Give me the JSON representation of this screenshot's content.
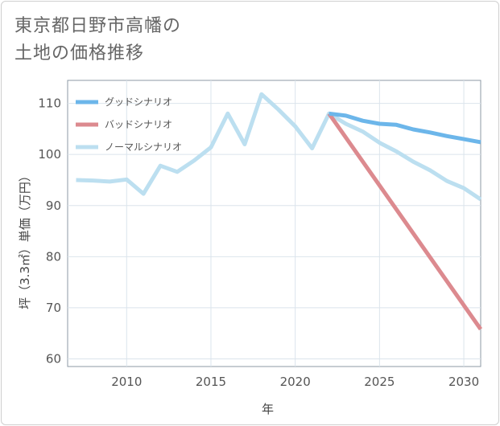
{
  "title": {
    "line1": "東京都日野市高幡の",
    "line2": "土地の価格推移"
  },
  "chart_data": {
    "type": "line",
    "title": "東京都日野市高幡の土地の価格推移",
    "xlabel": "年",
    "ylabel": "坪（3.3㎡）単価（万円）",
    "xlim": [
      2006.5,
      2031
    ],
    "ylim": [
      58.5,
      114.5
    ],
    "xticks": [
      2010,
      2015,
      2020,
      2025,
      2030
    ],
    "yticks": [
      60,
      70,
      80,
      90,
      100,
      110
    ],
    "legend_position": "top-left",
    "grid": true,
    "series": [
      {
        "name": "グッドシナリオ",
        "color": "#6cb6ea",
        "width": 5,
        "x": [
          2022,
          2023,
          2024,
          2025,
          2026,
          2027,
          2028,
          2029,
          2030,
          2031
        ],
        "y": [
          108,
          107.6,
          106.6,
          106.0,
          105.8,
          104.9,
          104.3,
          103.6,
          103.0,
          102.4
        ]
      },
      {
        "name": "バッドシナリオ",
        "color": "#dc8a8f",
        "width": 5,
        "x": [
          2022,
          2031
        ],
        "y": [
          108,
          65.8
        ]
      },
      {
        "name": "ノーマルシナリオ",
        "color": "#bcdff0",
        "width": 5,
        "x": [
          2007,
          2008,
          2009,
          2010,
          2011,
          2012,
          2013,
          2014,
          2015,
          2016,
          2017,
          2018,
          2019,
          2020,
          2021,
          2022,
          2023,
          2024,
          2025,
          2026,
          2027,
          2028,
          2029,
          2030,
          2031
        ],
        "y": [
          95.0,
          94.9,
          94.7,
          95.1,
          92.3,
          97.8,
          96.6,
          98.8,
          101.4,
          108.0,
          102.0,
          111.8,
          108.8,
          105.5,
          101.2,
          108.0,
          106.0,
          104.5,
          102.3,
          100.6,
          98.6,
          96.9,
          94.8,
          93.4,
          91.2
        ]
      }
    ]
  }
}
